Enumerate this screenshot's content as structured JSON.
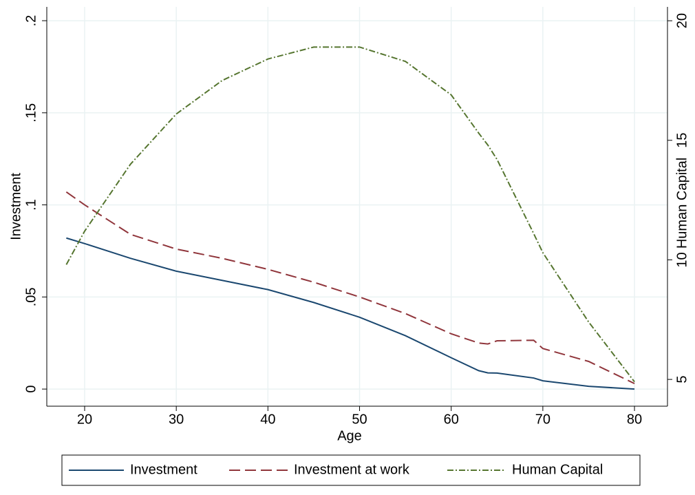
{
  "chart_data": {
    "type": "line",
    "x_label": "Age",
    "y_label": "Investment",
    "y2_label": "Human Capital",
    "x": [
      18,
      20,
      25,
      30,
      35,
      40,
      45,
      50,
      55,
      60,
      63,
      64,
      65,
      69,
      70,
      75,
      80
    ],
    "series": [
      {
        "name": "Investment",
        "color": "#1a476f",
        "dash": "solid",
        "values": [
          0.082,
          0.079,
          0.071,
          0.064,
          0.059,
          0.054,
          0.047,
          0.039,
          0.029,
          0.017,
          0.01,
          0.0088,
          0.0087,
          0.006,
          0.0045,
          0.0015,
          0
        ]
      },
      {
        "name": "Investment at work",
        "color": "#90353b",
        "dash": "long-dash",
        "values": [
          0.107,
          0.1,
          0.084,
          0.076,
          0.071,
          0.065,
          0.058,
          0.05,
          0.041,
          0.03,
          0.025,
          0.0245,
          0.0262,
          0.0265,
          0.022,
          0.015,
          0.003
        ]
      },
      {
        "name": "Human Capital",
        "color": "#55752f",
        "dash": "dash-dot",
        "axis": "y2",
        "values": [
          9.8,
          11.2,
          14.0,
          16.1,
          17.5,
          18.4,
          18.9,
          18.9,
          18.3,
          16.9,
          15.3,
          14.8,
          14.2,
          11.1,
          10.3,
          7.4,
          4.9
        ]
      }
    ],
    "xlim": [
      15.87,
      83.6
    ],
    "xticks": [
      20,
      30,
      40,
      50,
      60,
      70,
      80
    ],
    "ylim": [
      -0.0093,
      0.2075
    ],
    "yticks": [
      0,
      {
        "value": 0.05,
        "label": ".05"
      },
      {
        "value": 0.1,
        "label": ".1"
      },
      {
        "value": 0.15,
        "label": ".15"
      },
      {
        "value": 0.2,
        "label": ".2"
      }
    ],
    "y2lim": [
      3.88,
      20.58
    ],
    "y2ticks": [
      5,
      10,
      15,
      20
    ],
    "grid": true,
    "legend": "bottom"
  }
}
